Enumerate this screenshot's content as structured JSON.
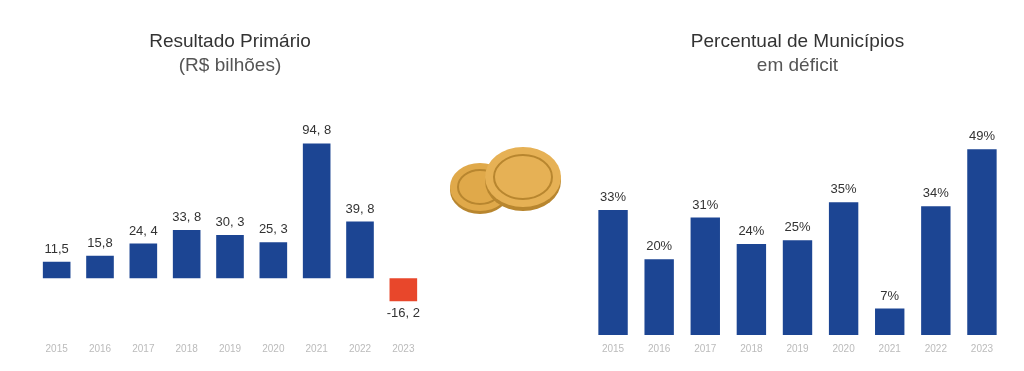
{
  "chart_data": [
    {
      "type": "bar",
      "title": "Resultado Primário",
      "subtitle": "(R$ bilhões)",
      "categories": [
        "2015",
        "2016",
        "2017",
        "2018",
        "2019",
        "2020",
        "2021",
        "2022",
        "2023"
      ],
      "values": [
        11.5,
        15.8,
        24.4,
        33.8,
        30.3,
        25.3,
        94.8,
        39.8,
        -16.2
      ],
      "value_labels": [
        "11,5",
        "15,8",
        "24, 4",
        "33, 8",
        "30, 3",
        "25, 3",
        "94, 8",
        "39, 8",
        "-16, 2"
      ],
      "colors": [
        "#1c4593",
        "#1c4593",
        "#1c4593",
        "#1c4593",
        "#1c4593",
        "#1c4593",
        "#1c4593",
        "#1c4593",
        "#e8472b"
      ],
      "data_labels": true,
      "tick_labels": "x",
      "grid": false
    },
    {
      "type": "bar",
      "title": "Percentual de Municípios",
      "subtitle": "em déficit",
      "categories": [
        "2015",
        "2016",
        "2017",
        "2018",
        "2019",
        "2020",
        "2021",
        "2022",
        "2023"
      ],
      "values": [
        33,
        20,
        31,
        24,
        25,
        35,
        7,
        34,
        49
      ],
      "value_labels": [
        "33%",
        "20%",
        "31%",
        "24%",
        "25%",
        "35%",
        "7%",
        "34%",
        "49%"
      ],
      "color": "#1c4593",
      "data_labels": true,
      "tick_labels": "x",
      "grid": false
    }
  ]
}
